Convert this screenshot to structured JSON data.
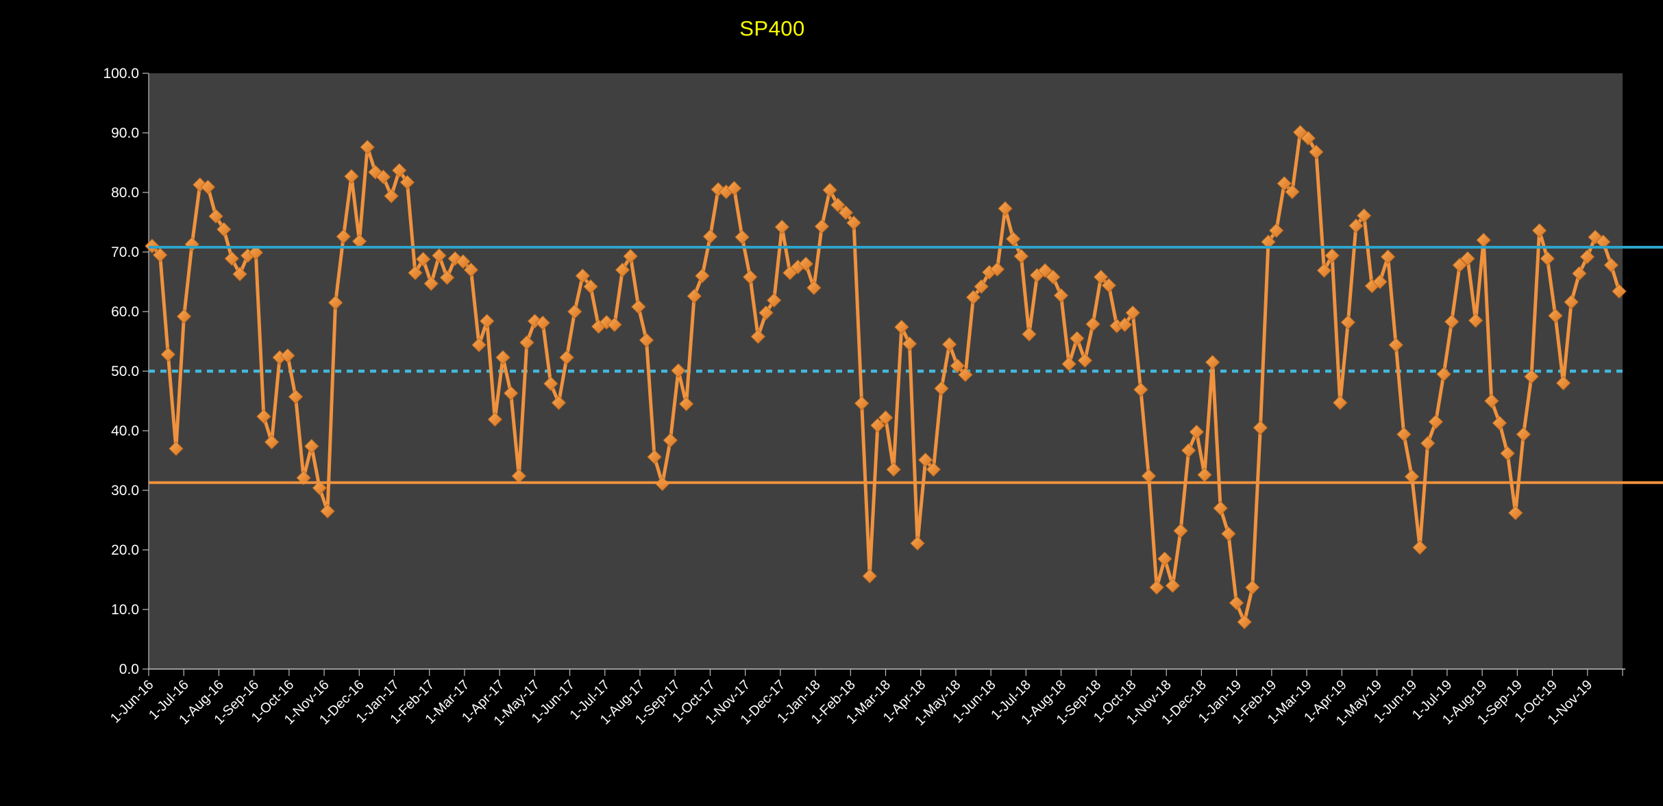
{
  "window": {
    "background": "#000000"
  },
  "chart_data": {
    "type": "line",
    "title": "SP400",
    "title_color": "#FFFF00",
    "frequency": "weekly",
    "start_label": "1-Jun-16",
    "end_label": "1-Nov-19",
    "grid": "off",
    "legend": "none",
    "ylim": [
      0,
      100
    ],
    "plot_bg": "#404040",
    "axis_color": "#BFBFBF",
    "label_color": "#FFFFFF",
    "series_color": "#F0923E",
    "marker_color_light": "#F8A955",
    "marker_color_dark": "#D9731F",
    "marker_stroke": "#BE6B1F",
    "y_tick_labels": [
      "0.0",
      "10.0",
      "20.0",
      "30.0",
      "40.0",
      "50.0",
      "60.0",
      "70.0",
      "80.0",
      "90.0",
      "100.0"
    ],
    "x_tick_labels": [
      "1-Jun-16",
      "1-Jul-16",
      "1-Aug-16",
      "1-Sep-16",
      "1-Oct-16",
      "1-Nov-16",
      "1-Dec-16",
      "1-Jan-17",
      "1-Feb-17",
      "1-Mar-17",
      "1-Apr-17",
      "1-May-17",
      "1-Jun-17",
      "1-Jul-17",
      "1-Aug-17",
      "1-Sep-17",
      "1-Oct-17",
      "1-Nov-17",
      "1-Dec-17",
      "1-Jan-18",
      "1-Feb-18",
      "1-Mar-18",
      "1-Apr-18",
      "1-May-18",
      "1-Jun-18",
      "1-Jul-18",
      "1-Aug-18",
      "1-Sep-18",
      "1-Oct-18",
      "1-Nov-18",
      "1-Dec-18",
      "1-Jan-19",
      "1-Feb-19",
      "1-Mar-19",
      "1-Apr-19",
      "1-May-19",
      "1-Jun-19",
      "1-Jul-19",
      "1-Aug-19",
      "1-Sep-19",
      "1-Oct-19",
      "1-Nov-19"
    ],
    "reference_lines": [
      {
        "name": "upper-band",
        "value": 70.8,
        "style": "solid",
        "color": "#2EA3C9",
        "extends_past_plot": true
      },
      {
        "name": "mid-band",
        "value": 50.0,
        "style": "dotted",
        "color": "#45B8DC",
        "extends_past_plot": false
      },
      {
        "name": "lower-band",
        "value": 31.3,
        "style": "solid",
        "color": "#F0923E",
        "extends_past_plot": true
      }
    ],
    "series": [
      {
        "name": "SP400",
        "values": [
          71.0,
          69.5,
          52.8,
          37.0,
          59.2,
          71.3,
          81.3,
          80.9,
          76.0,
          73.8,
          68.9,
          66.3,
          69.4,
          69.9,
          42.4,
          38.1,
          52.3,
          52.6,
          45.7,
          32.1,
          37.4,
          30.4,
          26.5,
          61.5,
          72.6,
          82.7,
          71.8,
          87.6,
          83.4,
          82.6,
          79.4,
          83.7,
          81.7,
          66.5,
          68.8,
          64.7,
          69.4,
          65.7,
          68.9,
          68.4,
          67.0,
          54.4,
          58.4,
          41.9,
          52.3,
          46.3,
          32.4,
          54.8,
          58.4,
          58.1,
          47.9,
          44.7,
          52.3,
          60.0,
          66.0,
          64.2,
          57.5,
          58.2,
          57.8,
          67.0,
          69.3,
          60.8,
          55.2,
          35.6,
          31.1,
          38.4,
          50.1,
          44.5,
          62.6,
          66.0,
          72.6,
          80.5,
          80.1,
          80.7,
          72.5,
          65.8,
          55.8,
          59.8,
          61.9,
          74.2,
          66.5,
          67.5,
          68.0,
          64.0,
          74.3,
          80.4,
          77.9,
          76.6,
          74.9,
          44.6,
          15.6,
          40.9,
          42.2,
          33.5,
          57.4,
          54.6,
          21.1,
          35.1,
          33.5,
          47.1,
          54.5,
          50.9,
          49.4,
          62.4,
          64.2,
          66.6,
          67.1,
          77.3,
          72.2,
          69.3,
          56.2,
          66.1,
          66.9,
          65.8,
          62.7,
          51.2,
          55.5,
          51.8,
          57.9,
          65.8,
          64.4,
          57.6,
          57.8,
          59.8,
          46.9,
          32.4,
          13.7,
          18.5,
          14.0,
          23.2,
          36.7,
          39.8,
          32.6,
          51.5,
          27.0,
          22.7,
          11.1,
          7.9,
          13.7,
          40.5,
          71.7,
          73.6,
          81.5,
          80.1,
          90.1,
          89.1,
          86.8,
          66.9,
          69.4,
          44.7,
          58.2,
          74.4,
          76.1,
          64.3,
          65.0,
          69.2,
          54.4,
          39.4,
          32.3,
          20.4,
          37.9,
          41.5,
          49.5,
          58.3,
          67.8,
          68.9,
          58.5,
          72.0,
          45.0,
          41.3,
          36.2,
          26.2,
          39.4,
          49.1,
          73.6,
          68.9,
          59.3,
          48.0,
          61.6,
          66.4,
          69.2,
          72.5,
          71.7,
          67.8,
          63.4
        ]
      }
    ]
  }
}
